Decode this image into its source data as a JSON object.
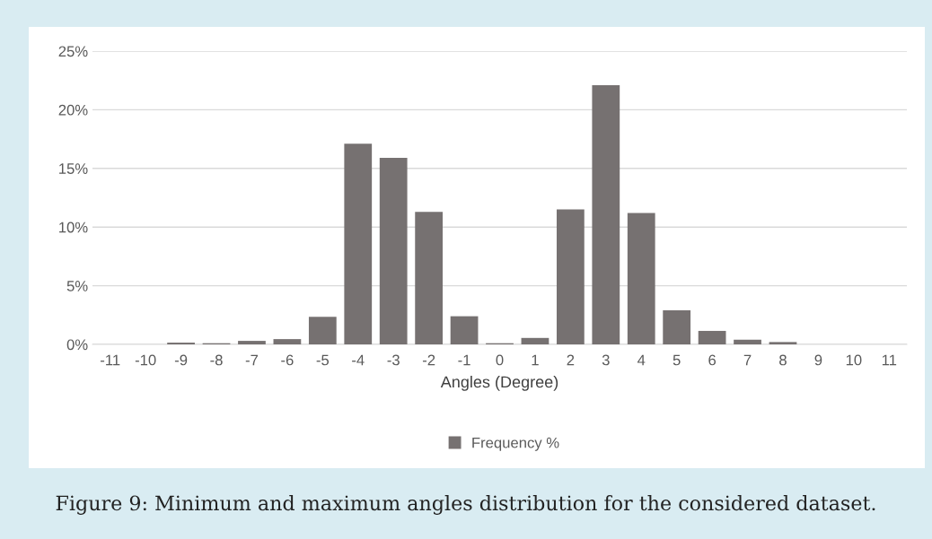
{
  "chart_data": {
    "type": "bar",
    "xlabel": "Angles (Degree)",
    "categories": [
      "-11",
      "-10",
      "-9",
      "-8",
      "-7",
      "-6",
      "-5",
      "-4",
      "-3",
      "-2",
      "-1",
      "0",
      "1",
      "2",
      "3",
      "4",
      "5",
      "6",
      "7",
      "8",
      "9",
      "10",
      "11"
    ],
    "series": [
      {
        "name": "Frequency %",
        "color": "#767171",
        "values": [
          0,
          0,
          0.15,
          0.1,
          0.3,
          0.45,
          2.35,
          17.1,
          15.9,
          11.3,
          2.4,
          0.1,
          0.55,
          11.5,
          22.1,
          11.2,
          2.9,
          1.15,
          0.4,
          0.2,
          0,
          0,
          0
        ]
      }
    ],
    "ylim": [
      0,
      25
    ],
    "yticks": [
      {
        "value": 0,
        "label": "0%"
      },
      {
        "value": 5,
        "label": "5%"
      },
      {
        "value": 10,
        "label": "10%"
      },
      {
        "value": 15,
        "label": "15%"
      },
      {
        "value": 20,
        "label": "20%"
      },
      {
        "value": 25,
        "label": "25%"
      }
    ],
    "grid": "y",
    "legend": "bottom",
    "annotations": [
      "Figure 9: Minimum and maximum angles distribution for the considered dataset."
    ]
  }
}
